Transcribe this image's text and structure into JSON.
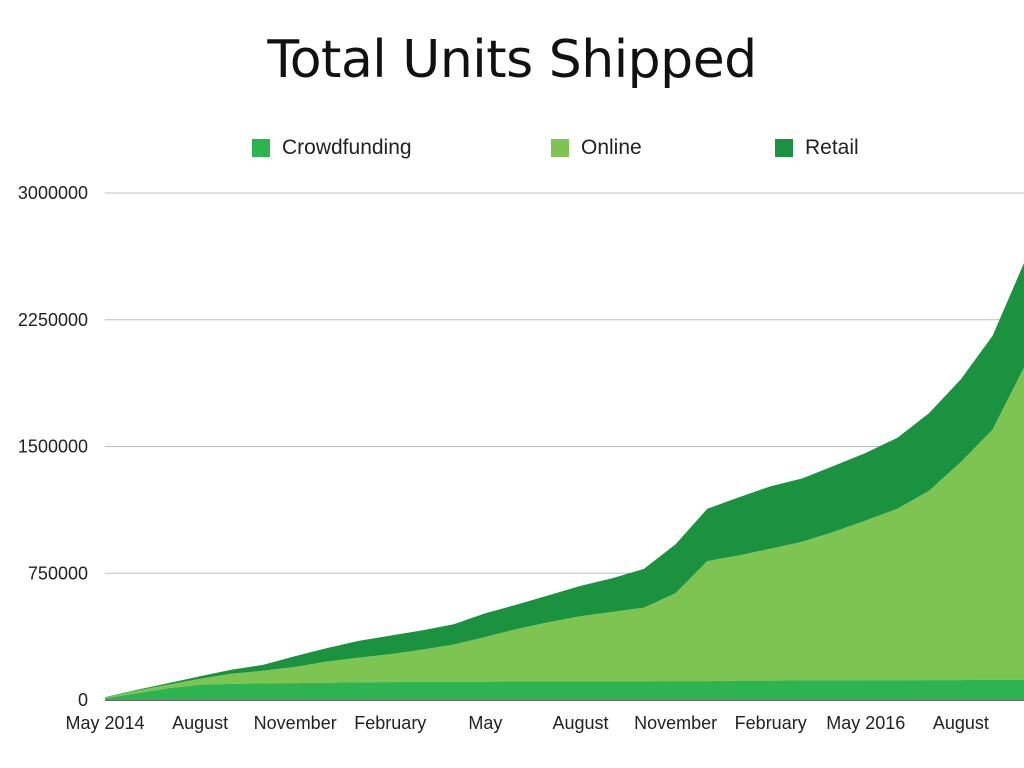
{
  "chart_data": {
    "type": "area",
    "stacked": true,
    "title": "Total Units Shipped",
    "xlabel": "",
    "ylabel": "",
    "ylim": [
      0,
      3000000
    ],
    "y_ticks": [
      "0",
      "750000",
      "1500000",
      "2250000",
      "3000000"
    ],
    "y_tick_values": [
      0,
      750000,
      1500000,
      2250000,
      3000000
    ],
    "x_tick_labels": [
      "May 2014",
      "August",
      "November",
      "February",
      "May",
      "August",
      "November",
      "February",
      "May 2016",
      "August"
    ],
    "x_tick_index": [
      0,
      3,
      6,
      9,
      12,
      15,
      18,
      21,
      24,
      27
    ],
    "x": [
      "2014-05",
      "2014-06",
      "2014-07",
      "2014-08",
      "2014-09",
      "2014-10",
      "2014-11",
      "2014-12",
      "2015-01",
      "2015-02",
      "2015-03",
      "2015-04",
      "2015-05",
      "2015-06",
      "2015-07",
      "2015-08",
      "2015-09",
      "2015-10",
      "2015-11",
      "2015-12",
      "2016-01",
      "2016-02",
      "2016-03",
      "2016-04",
      "2016-05",
      "2016-06",
      "2016-07",
      "2016-08",
      "2016-09",
      "2016-10"
    ],
    "legend_position": "top",
    "grid": true,
    "series": [
      {
        "name": "Crowdfunding",
        "color": "#2db350",
        "values": [
          10000,
          40000,
          70000,
          90000,
          95000,
          98000,
          100000,
          102000,
          105000,
          106000,
          107000,
          108000,
          108000,
          110000,
          110000,
          110000,
          111000,
          111000,
          112000,
          112000,
          115000,
          115000,
          116000,
          116000,
          117000,
          117000,
          118000,
          118000,
          120000,
          120000
        ]
      },
      {
        "name": "Online",
        "color": "#7ec453",
        "values": [
          5000,
          15000,
          20000,
          35000,
          60000,
          75000,
          95000,
          125000,
          145000,
          165000,
          190000,
          220000,
          265000,
          310000,
          350000,
          385000,
          410000,
          435000,
          520000,
          710000,
          740000,
          780000,
          820000,
          880000,
          945000,
          1015000,
          1120000,
          1290000,
          1480000,
          1850000
        ]
      },
      {
        "name": "Retail",
        "color": "#1a9240",
        "values": [
          2000,
          5000,
          10000,
          15000,
          25000,
          35000,
          65000,
          80000,
          100000,
          110000,
          115000,
          120000,
          140000,
          145000,
          160000,
          180000,
          200000,
          230000,
          290000,
          310000,
          345000,
          370000,
          375000,
          390000,
          400000,
          420000,
          460000,
          490000,
          555000,
          620000
        ]
      }
    ]
  }
}
